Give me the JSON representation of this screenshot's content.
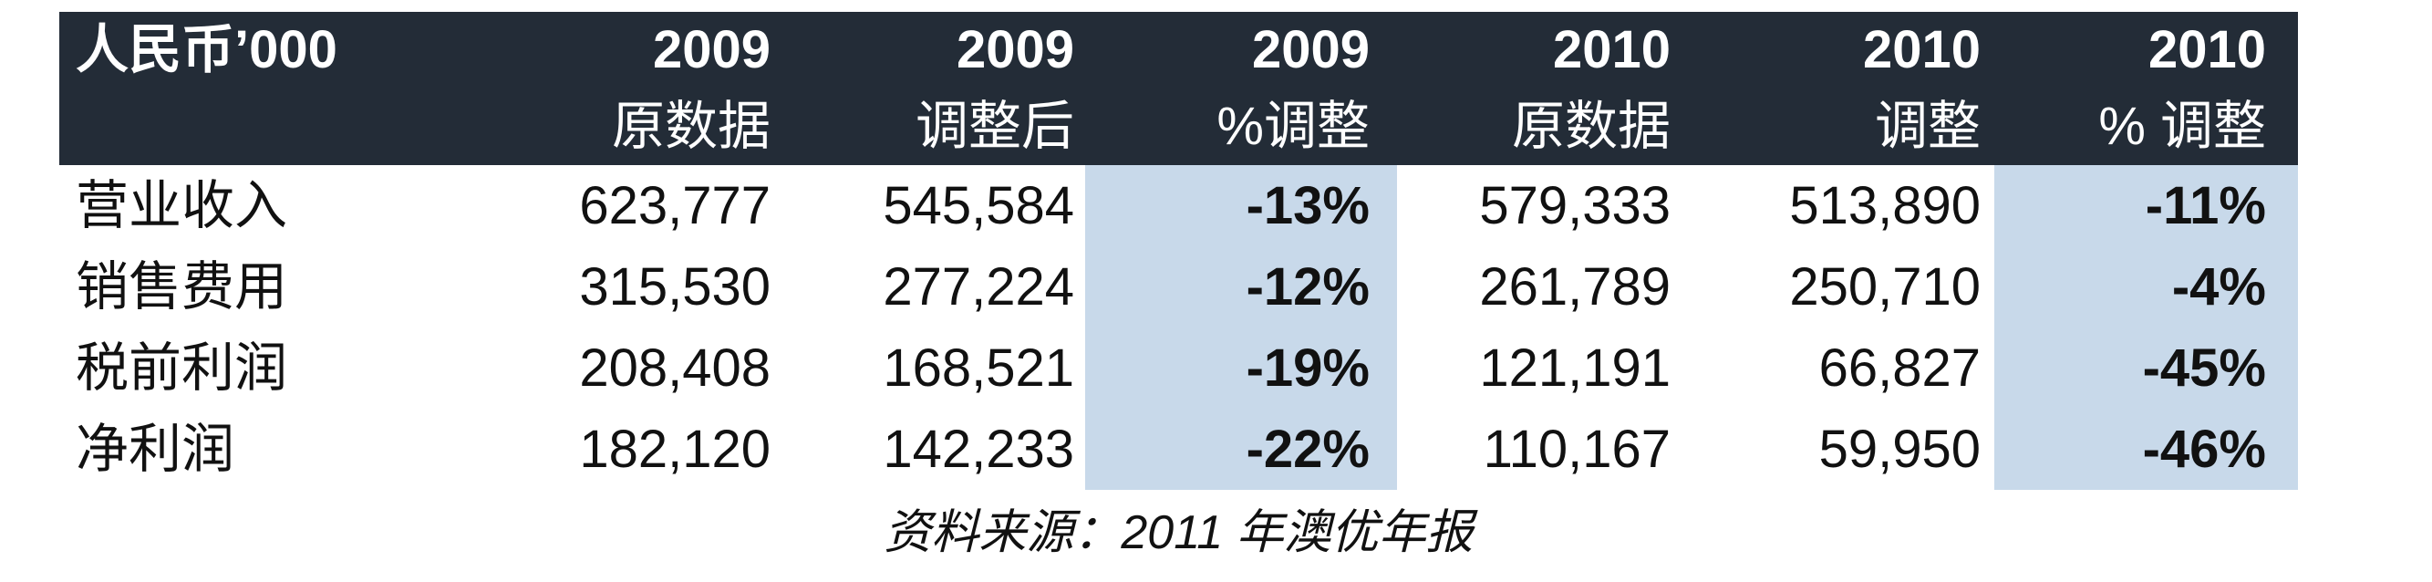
{
  "table": {
    "header": {
      "columns": [
        {
          "year": "",
          "subtitle": "人民币’000"
        },
        {
          "year": "2009",
          "subtitle": "原数据"
        },
        {
          "year": "2009",
          "subtitle": "调整后"
        },
        {
          "year": "2009",
          "subtitle": "%调整"
        },
        {
          "year": "2010",
          "subtitle": "原数据"
        },
        {
          "year": "2010",
          "subtitle": "调整"
        },
        {
          "year": "2010",
          "subtitle": "% 调整"
        }
      ]
    },
    "rows": [
      {
        "label": "营业收入",
        "cells": [
          "623,777",
          "545,584",
          "-13%",
          "579,333",
          "513,890",
          "-11%"
        ]
      },
      {
        "label": "销售费用",
        "cells": [
          "315,530",
          "277,224",
          "-12%",
          "261,789",
          "250,710",
          "-4%"
        ]
      },
      {
        "label": "税前利润",
        "cells": [
          "208,408",
          "168,521",
          "-19%",
          "121,191",
          "66,827",
          "-45%"
        ]
      },
      {
        "label": "净利润",
        "cells": [
          "182,120",
          "142,233",
          "-22%",
          "110,167",
          "59,950",
          "-46%"
        ]
      }
    ],
    "footer": {
      "source_note": "资料来源：2011 年澳优年报"
    }
  },
  "chart_data": {
    "type": "table",
    "unit": "人民币’000",
    "columns": [
      "2009 原数据",
      "2009 调整后",
      "2009 %调整",
      "2010 原数据",
      "2010 调整",
      "2010 % 调整"
    ],
    "rows": [
      {
        "label": "营业收入",
        "values": [
          623777,
          545584,
          "-13%",
          579333,
          513890,
          "-11%"
        ]
      },
      {
        "label": "销售费用",
        "values": [
          315530,
          277224,
          "-12%",
          261789,
          250710,
          "-4%"
        ]
      },
      {
        "label": "税前利润",
        "values": [
          208408,
          168521,
          "-19%",
          121191,
          66827,
          "-45%"
        ]
      },
      {
        "label": "净利润",
        "values": [
          182120,
          142233,
          "-22%",
          110167,
          59950,
          "-46%"
        ]
      }
    ],
    "highlighted_columns": [
      "2009 %调整",
      "2010 % 调整"
    ],
    "source": "资料来源：2011 年澳优年报"
  },
  "colors": {
    "header_bg": "#232c37",
    "highlight": "#c8d9ea",
    "header_text": "#ffffff",
    "body_text": "#111111"
  }
}
